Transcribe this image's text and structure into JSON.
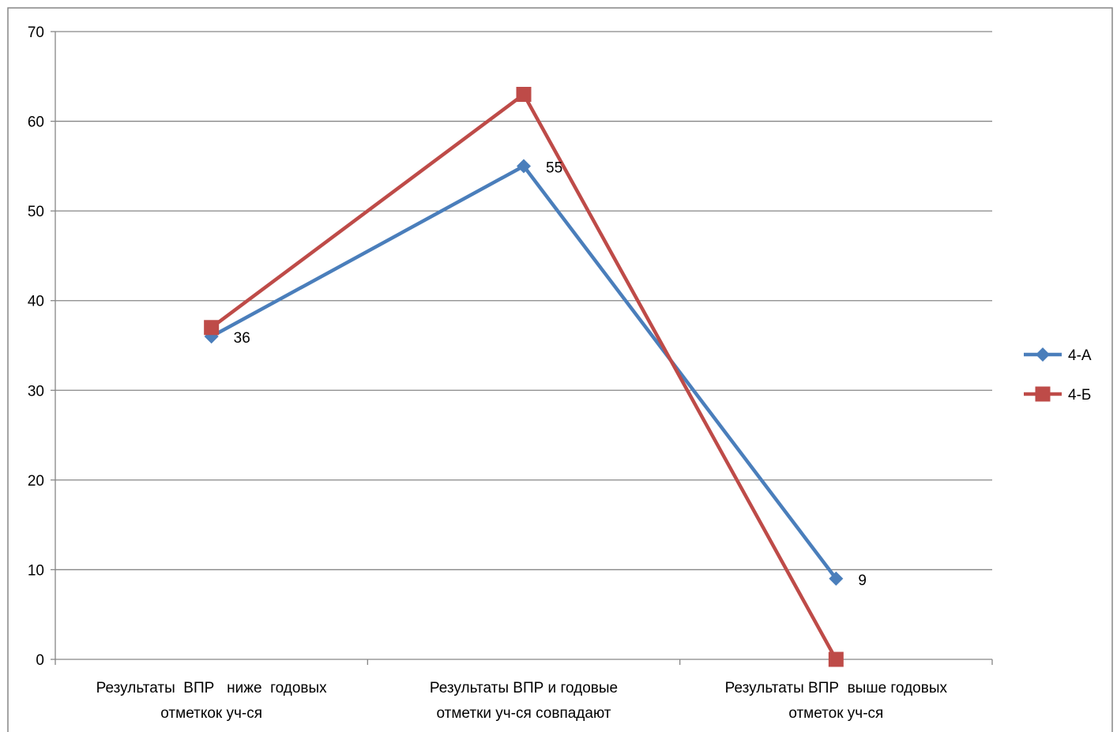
{
  "chart_data": {
    "type": "line",
    "categories": [
      [
        "Результаты  ВПР   ниже  годовых",
        "отметкок уч-ся"
      ],
      [
        "Результаты ВПР и годовые",
        "отметки уч-ся совпадают"
      ],
      [
        "Результаты ВПР  выше годовых",
        "отметок уч-ся"
      ]
    ],
    "series": [
      {
        "name": "4-А",
        "values": [
          36,
          55,
          9
        ],
        "color": "#4a7ebb",
        "marker": "diamond",
        "data_labels": [
          "36",
          "55",
          "9"
        ]
      },
      {
        "name": "4-Б",
        "values": [
          37,
          63,
          0
        ],
        "color": "#be4b48",
        "marker": "square"
      }
    ],
    "ylim": [
      0,
      70
    ],
    "yticks": [
      "0",
      "10",
      "20",
      "30",
      "40",
      "50",
      "60",
      "70"
    ],
    "grid": true,
    "legend": "right",
    "title": "",
    "xlabel": "",
    "ylabel": ""
  }
}
